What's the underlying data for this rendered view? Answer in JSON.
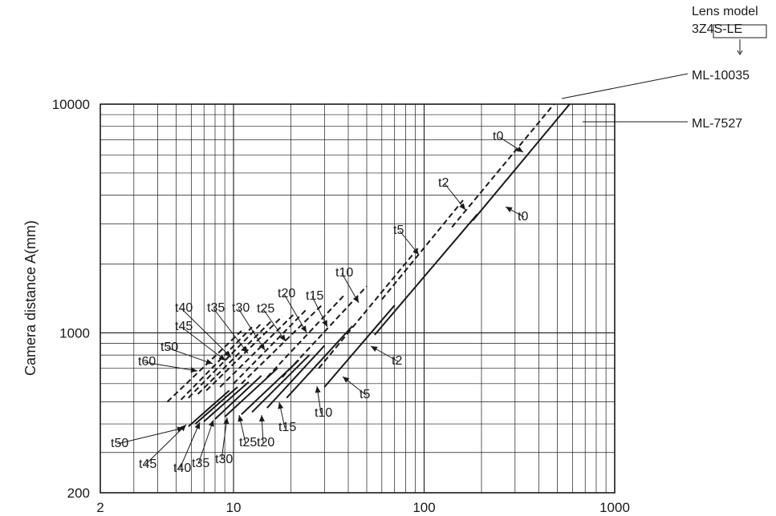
{
  "chart_data": {
    "type": "line",
    "ylabel": "Camera distance A(mm)",
    "xlabel": "",
    "x_scale": "log",
    "y_scale": "log",
    "xlim": [
      2,
      1000
    ],
    "ylim": [
      200,
      10000
    ],
    "x_ticks": [
      "2",
      "10",
      "100",
      "1000"
    ],
    "y_ticks": [
      "200",
      "1000",
      "10000"
    ],
    "grid": true,
    "legend": {
      "title_line1": "Lens model",
      "title_line2": "3Z4S-LE",
      "items": [
        "ML-10035",
        "ML-7527"
      ]
    },
    "series": [
      {
        "name": "ML-10035",
        "style": "dashed",
        "segments": [
          {
            "label": "t0",
            "x": [
              140,
              480
            ],
            "y": [
              2900,
              10000
            ]
          },
          {
            "label": "t2",
            "x": [
              60,
              160
            ],
            "y": [
              1400,
              3800
            ]
          },
          {
            "label": "t5",
            "x": [
              28,
              95
            ],
            "y": [
              700,
              2400
            ]
          },
          {
            "label": "t10",
            "x": [
              18,
              50
            ],
            "y": [
              640,
              1600
            ]
          },
          {
            "label": "t15",
            "x": [
              15,
              38
            ],
            "y": [
              640,
              1460
            ]
          },
          {
            "label": "t20",
            "x": [
              11,
              29
            ],
            "y": [
              600,
              1320
            ]
          },
          {
            "label": "t25",
            "x": [
              10,
              24
            ],
            "y": [
              600,
              1260
            ]
          },
          {
            "label": "t30",
            "x": [
              8.5,
              21
            ],
            "y": [
              580,
              1220
            ]
          },
          {
            "label": "t35",
            "x": [
              7.2,
              18
            ],
            "y": [
              560,
              1180
            ]
          },
          {
            "label": "t40",
            "x": [
              6.5,
              16
            ],
            "y": [
              540,
              1140
            ]
          },
          {
            "label": "t45",
            "x": [
              5.8,
              14
            ],
            "y": [
              520,
              1100
            ]
          },
          {
            "label": "t50",
            "x": [
              5.3,
              12.5
            ],
            "y": [
              510,
              1060
            ]
          },
          {
            "label": "t60",
            "x": [
              4.5,
              11
            ],
            "y": [
              500,
              1020
            ]
          }
        ]
      },
      {
        "name": "ML-7527",
        "style": "solid",
        "segments": [
          {
            "label": "t0",
            "x": [
              180,
              580
            ],
            "y": [
              3100,
              10000
            ]
          },
          {
            "label": "t2",
            "x": [
              55,
              190
            ],
            "y": [
              980,
              3300
            ]
          },
          {
            "label": "t5",
            "x": [
              30,
              70
            ],
            "y": [
              580,
              1320
            ]
          },
          {
            "label": "t10",
            "x": [
              19,
              42
            ],
            "y": [
              520,
              1070
            ]
          },
          {
            "label": "t15",
            "x": [
              15,
              30
            ],
            "y": [
              470,
              880
            ]
          },
          {
            "label": "t20",
            "x": [
              12.5,
              25
            ],
            "y": [
              450,
              800
            ]
          },
          {
            "label": "t25",
            "x": [
              11,
              22
            ],
            "y": [
              440,
              760
            ]
          },
          {
            "label": "t30",
            "x": [
              9,
              17
            ],
            "y": [
              430,
              700
            ]
          },
          {
            "label": "t35",
            "x": [
              8,
              14
            ],
            "y": [
              420,
              650
            ]
          },
          {
            "label": "t40",
            "x": [
              7,
              12
            ],
            "y": [
              410,
              610
            ]
          },
          {
            "label": "t45",
            "x": [
              6.3,
              10.5
            ],
            "y": [
              400,
              580
            ]
          },
          {
            "label": "t50",
            "x": [
              5.8,
              9.5
            ],
            "y": [
              390,
              560
            ]
          }
        ]
      }
    ],
    "annotations": {
      "dashed": [
        "t0",
        "t2",
        "t5",
        "t10",
        "t15",
        "t20",
        "t25",
        "t30",
        "t35",
        "t40",
        "t45",
        "t50",
        "t60"
      ],
      "solid": [
        "t0",
        "t2",
        "t5",
        "t10",
        "t15",
        "t20",
        "t25",
        "t30",
        "t35",
        "t40",
        "t45",
        "t50"
      ]
    }
  }
}
